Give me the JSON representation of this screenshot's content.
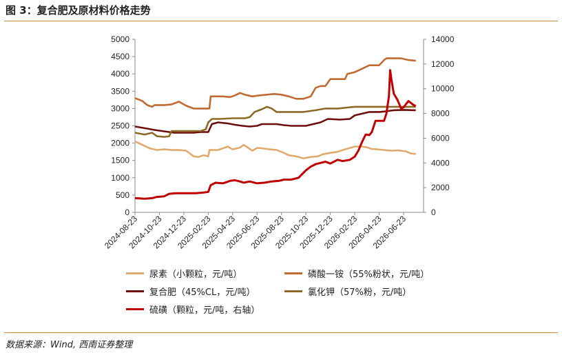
{
  "figure": {
    "title": "图 3：复合肥及原材料价格走势",
    "source": "数据来源：Wind, 西南证券整理"
  },
  "chart_data": {
    "type": "line",
    "left_axis": {
      "min": 0,
      "max": 5000,
      "step": 500,
      "ticks": [
        "0",
        "500",
        "1000",
        "1500",
        "2000",
        "2500",
        "3000",
        "3500",
        "4000",
        "4500",
        "5000"
      ]
    },
    "right_axis": {
      "min": 0,
      "max": 14000,
      "step": 2000,
      "ticks": [
        "0",
        "2000",
        "4000",
        "6000",
        "8000",
        "10000",
        "12000",
        "14000"
      ]
    },
    "x_ticks": [
      "2024-08-23",
      "2024-10-23",
      "2024-12-23",
      "2025-02-23",
      "2025-04-23",
      "2025-06-23",
      "2025-08-23",
      "2025-10-23",
      "2025-12-23",
      "2026-02-23",
      "2026-04-23",
      "2026-06-23"
    ],
    "grid": false,
    "legend_position": "bottom",
    "series": [
      {
        "name": "尿素（小颗粒，元/吨）",
        "color": "#e0aa6e",
        "axis": "left",
        "points": [
          [
            0,
            2050
          ],
          [
            0.3,
            1950
          ],
          [
            0.6,
            1850
          ],
          [
            0.9,
            1800
          ],
          [
            1.2,
            1820
          ],
          [
            1.5,
            1800
          ],
          [
            1.8,
            1800
          ],
          [
            2.1,
            1780
          ],
          [
            2.4,
            1620
          ],
          [
            2.6,
            1600
          ],
          [
            2.8,
            1650
          ],
          [
            3.0,
            1620
          ],
          [
            3.05,
            1800
          ],
          [
            3.4,
            1800
          ],
          [
            3.8,
            1900
          ],
          [
            4.0,
            1820
          ],
          [
            4.3,
            1870
          ],
          [
            4.45,
            1950
          ],
          [
            4.6,
            1880
          ],
          [
            4.8,
            1780
          ],
          [
            5.0,
            1860
          ],
          [
            5.2,
            1850
          ],
          [
            5.5,
            1820
          ],
          [
            5.8,
            1800
          ],
          [
            6.1,
            1720
          ],
          [
            6.3,
            1650
          ],
          [
            6.6,
            1620
          ],
          [
            6.9,
            1560
          ],
          [
            7.2,
            1600
          ],
          [
            7.5,
            1620
          ],
          [
            7.7,
            1680
          ],
          [
            8.0,
            1720
          ],
          [
            8.3,
            1750
          ],
          [
            8.6,
            1820
          ],
          [
            8.9,
            1880
          ],
          [
            9.0,
            1900
          ],
          [
            9.3,
            1900
          ],
          [
            9.5,
            1880
          ],
          [
            9.7,
            1830
          ],
          [
            9.9,
            1820
          ],
          [
            10.2,
            1800
          ],
          [
            10.5,
            1780
          ],
          [
            10.8,
            1790
          ],
          [
            11.1,
            1760
          ],
          [
            11.3,
            1700
          ],
          [
            11.5,
            1690
          ]
        ]
      },
      {
        "name": "磷酸一铵（55%粉状，元/吨）",
        "color": "#c06a31",
        "axis": "left",
        "points": [
          [
            0,
            3300
          ],
          [
            0.3,
            3220
          ],
          [
            0.5,
            3100
          ],
          [
            0.7,
            3050
          ],
          [
            0.8,
            3100
          ],
          [
            1.2,
            3100
          ],
          [
            1.5,
            3120
          ],
          [
            1.8,
            3200
          ],
          [
            2.1,
            3080
          ],
          [
            2.4,
            3000
          ],
          [
            2.8,
            3000
          ],
          [
            3.05,
            3000
          ],
          [
            3.1,
            3350
          ],
          [
            3.6,
            3350
          ],
          [
            3.9,
            3330
          ],
          [
            4.1,
            3380
          ],
          [
            4.3,
            3450
          ],
          [
            4.5,
            3400
          ],
          [
            4.8,
            3350
          ],
          [
            5.1,
            3380
          ],
          [
            5.4,
            3400
          ],
          [
            5.7,
            3420
          ],
          [
            6.0,
            3400
          ],
          [
            6.3,
            3350
          ],
          [
            6.6,
            3280
          ],
          [
            6.9,
            3280
          ],
          [
            7.2,
            3350
          ],
          [
            7.4,
            3600
          ],
          [
            7.6,
            3650
          ],
          [
            7.8,
            3650
          ],
          [
            8.0,
            3850
          ],
          [
            8.6,
            3850
          ],
          [
            8.7,
            4000
          ],
          [
            9.0,
            4050
          ],
          [
            9.3,
            4150
          ],
          [
            9.6,
            4250
          ],
          [
            10.0,
            4250
          ],
          [
            10.2,
            4400
          ],
          [
            10.3,
            4450
          ],
          [
            10.9,
            4450
          ],
          [
            11.2,
            4400
          ],
          [
            11.5,
            4380
          ]
        ]
      },
      {
        "name": "复合肥（45%CL，元/吨）",
        "color": "#6e0c0c",
        "axis": "left",
        "points": [
          [
            0,
            2480
          ],
          [
            0.5,
            2420
          ],
          [
            0.8,
            2380
          ],
          [
            1.2,
            2340
          ],
          [
            1.6,
            2300
          ],
          [
            2.0,
            2300
          ],
          [
            2.4,
            2300
          ],
          [
            2.7,
            2320
          ],
          [
            3.0,
            2320
          ],
          [
            3.15,
            2550
          ],
          [
            3.4,
            2600
          ],
          [
            3.8,
            2570
          ],
          [
            4.1,
            2530
          ],
          [
            4.4,
            2500
          ],
          [
            4.7,
            2480
          ],
          [
            5.0,
            2500
          ],
          [
            5.2,
            2550
          ],
          [
            5.8,
            2550
          ],
          [
            6.1,
            2520
          ],
          [
            6.4,
            2500
          ],
          [
            7.0,
            2500
          ],
          [
            7.3,
            2550
          ],
          [
            7.6,
            2600
          ],
          [
            7.9,
            2700
          ],
          [
            8.4,
            2680
          ],
          [
            8.8,
            2700
          ],
          [
            9.0,
            2800
          ],
          [
            9.3,
            2850
          ],
          [
            9.6,
            2900
          ],
          [
            10.0,
            2900
          ],
          [
            10.3,
            2920
          ],
          [
            10.6,
            2950
          ],
          [
            11.0,
            2960
          ],
          [
            11.5,
            2950
          ]
        ]
      },
      {
        "name": "氯化钾（57%粉，元/吨）",
        "color": "#8c6a26",
        "axis": "left",
        "points": [
          [
            0,
            2300
          ],
          [
            0.4,
            2250
          ],
          [
            0.7,
            2300
          ],
          [
            0.9,
            2200
          ],
          [
            1.2,
            2180
          ],
          [
            1.4,
            2200
          ],
          [
            1.5,
            2350
          ],
          [
            1.9,
            2350
          ],
          [
            2.3,
            2350
          ],
          [
            2.7,
            2350
          ],
          [
            2.9,
            2400
          ],
          [
            3.0,
            2600
          ],
          [
            3.15,
            2700
          ],
          [
            3.5,
            2700
          ],
          [
            4.0,
            2720
          ],
          [
            4.5,
            2720
          ],
          [
            4.7,
            2750
          ],
          [
            4.9,
            2900
          ],
          [
            5.2,
            2980
          ],
          [
            5.4,
            3050
          ],
          [
            5.6,
            3000
          ],
          [
            5.8,
            2900
          ],
          [
            6.3,
            2900
          ],
          [
            6.9,
            2900
          ],
          [
            7.4,
            2950
          ],
          [
            7.8,
            3000
          ],
          [
            8.3,
            3000
          ],
          [
            9.0,
            3050
          ],
          [
            9.5,
            3050
          ],
          [
            10.0,
            3050
          ],
          [
            10.5,
            3050
          ],
          [
            11.0,
            3050
          ],
          [
            11.5,
            3050
          ]
        ]
      },
      {
        "name": "硫磺（颗粒，元/吨，右轴）",
        "color": "#c00000",
        "axis": "right",
        "points": [
          [
            0,
            1150
          ],
          [
            0.4,
            1100
          ],
          [
            0.7,
            1150
          ],
          [
            0.9,
            1250
          ],
          [
            1.2,
            1300
          ],
          [
            1.4,
            1500
          ],
          [
            1.7,
            1550
          ],
          [
            2.0,
            1550
          ],
          [
            2.3,
            1550
          ],
          [
            2.5,
            1550
          ],
          [
            2.8,
            1600
          ],
          [
            3.0,
            1650
          ],
          [
            3.1,
            2200
          ],
          [
            3.3,
            2400
          ],
          [
            3.6,
            2350
          ],
          [
            3.9,
            2550
          ],
          [
            4.1,
            2600
          ],
          [
            4.3,
            2500
          ],
          [
            4.45,
            2400
          ],
          [
            4.7,
            2500
          ],
          [
            5.0,
            2350
          ],
          [
            5.3,
            2400
          ],
          [
            5.6,
            2500
          ],
          [
            5.9,
            2550
          ],
          [
            6.1,
            2650
          ],
          [
            6.4,
            2650
          ],
          [
            6.7,
            2800
          ],
          [
            6.85,
            3100
          ],
          [
            7.0,
            3400
          ],
          [
            7.2,
            3700
          ],
          [
            7.4,
            3900
          ],
          [
            7.6,
            4000
          ],
          [
            7.8,
            4100
          ],
          [
            8.0,
            3950
          ],
          [
            8.3,
            4250
          ],
          [
            8.5,
            4150
          ],
          [
            8.8,
            4250
          ],
          [
            9.0,
            4500
          ],
          [
            9.15,
            5000
          ],
          [
            9.3,
            5700
          ],
          [
            9.45,
            6300
          ],
          [
            9.6,
            6250
          ],
          [
            9.7,
            6500
          ],
          [
            9.85,
            7400
          ],
          [
            10.0,
            7400
          ],
          [
            10.2,
            7400
          ],
          [
            10.3,
            8000
          ],
          [
            10.4,
            9400
          ],
          [
            10.45,
            11500
          ],
          [
            10.5,
            10800
          ],
          [
            10.6,
            9600
          ],
          [
            10.75,
            9100
          ],
          [
            10.9,
            8400
          ],
          [
            11.0,
            8500
          ],
          [
            11.2,
            9000
          ],
          [
            11.4,
            8700
          ],
          [
            11.5,
            8600
          ]
        ]
      }
    ]
  }
}
